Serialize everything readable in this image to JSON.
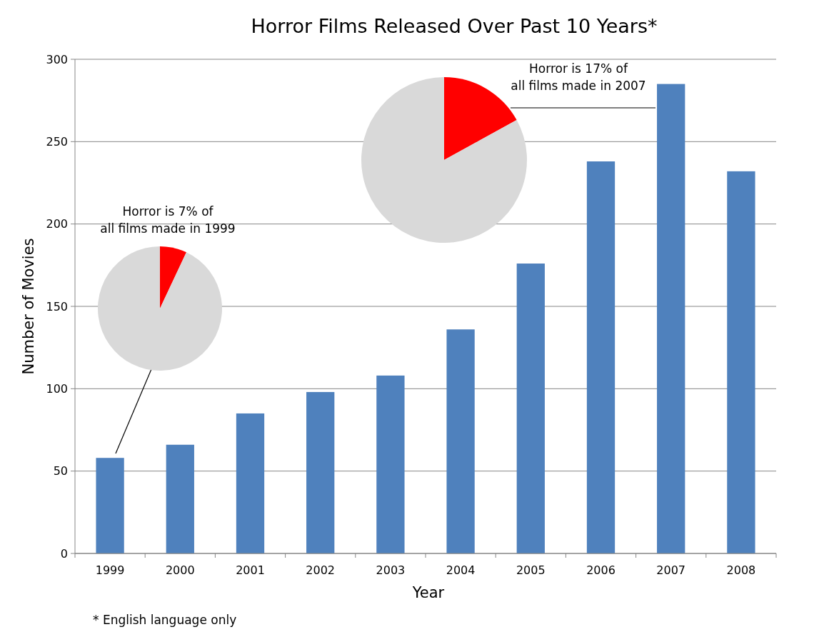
{
  "chart_data": [
    {
      "type": "bar",
      "title": "Horror Films Released Over Past 10 Years*",
      "xlabel": "Year",
      "ylabel": "Number of Movies",
      "categories": [
        "1999",
        "2000",
        "2001",
        "2002",
        "2003",
        "2004",
        "2005",
        "2006",
        "2007",
        "2008"
      ],
      "values": [
        58,
        66,
        85,
        98,
        108,
        136,
        176,
        238,
        285,
        232
      ],
      "color": "#4f81bd",
      "ylim": [
        0,
        300
      ],
      "yticks": [
        0,
        50,
        100,
        150,
        200,
        250,
        300
      ],
      "grid": "y",
      "annotations": [
        "* English language only",
        "Horror is 7% of\nall films made in 1999",
        "Horror is 17% of\nall films made in 2007"
      ]
    },
    {
      "type": "pie",
      "categories": [
        null,
        null
      ],
      "values": [
        7,
        93
      ],
      "colors": [
        "#ff0000",
        "#d9d9d9"
      ]
    },
    {
      "type": "pie",
      "categories": [
        null,
        null
      ],
      "values": [
        17,
        83
      ],
      "colors": [
        "#ff0000",
        "#d9d9d9"
      ]
    }
  ]
}
